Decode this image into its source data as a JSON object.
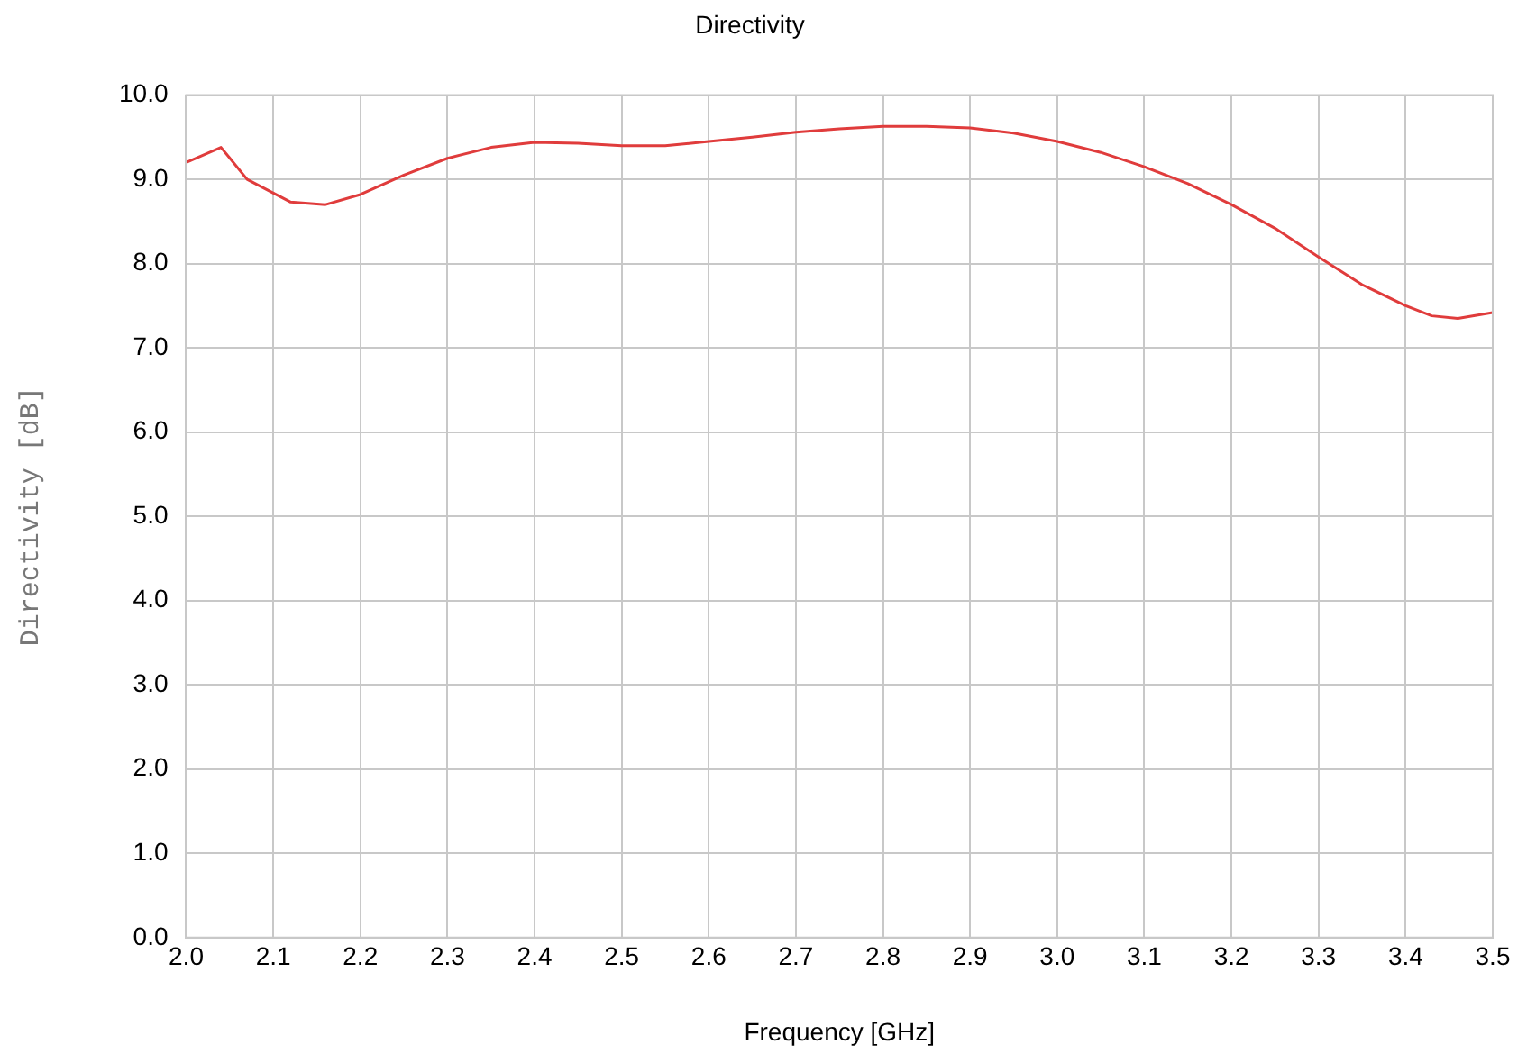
{
  "chart_data": {
    "type": "line",
    "title": "Directivity",
    "xlabel": "Frequency [GHz]",
    "ylabel": "Directivity [dB]",
    "x": [
      2.0,
      2.04,
      2.07,
      2.12,
      2.16,
      2.2,
      2.25,
      2.3,
      2.35,
      2.4,
      2.45,
      2.5,
      2.55,
      2.6,
      2.65,
      2.7,
      2.75,
      2.8,
      2.85,
      2.9,
      2.95,
      3.0,
      3.05,
      3.1,
      3.15,
      3.2,
      3.25,
      3.3,
      3.35,
      3.4,
      3.43,
      3.46,
      3.5
    ],
    "series": [
      {
        "color": "#e03c3c",
        "values": [
          9.2,
          9.38,
          9.0,
          8.73,
          8.7,
          8.82,
          9.05,
          9.25,
          9.38,
          9.44,
          9.43,
          9.4,
          9.4,
          9.45,
          9.5,
          9.56,
          9.6,
          9.63,
          9.63,
          9.61,
          9.55,
          9.45,
          9.32,
          9.15,
          8.95,
          8.7,
          8.42,
          8.08,
          7.75,
          7.5,
          7.38,
          7.35,
          7.42
        ]
      }
    ],
    "xlim": [
      2.0,
      3.5
    ],
    "xticks": [
      {
        "value": 2.0,
        "label": "2.0"
      },
      {
        "value": 2.1,
        "label": "2.1"
      },
      {
        "value": 2.2,
        "label": "2.2"
      },
      {
        "value": 2.3,
        "label": "2.3"
      },
      {
        "value": 2.4,
        "label": "2.4"
      },
      {
        "value": 2.5,
        "label": "2.5"
      },
      {
        "value": 2.6,
        "label": "2.6"
      },
      {
        "value": 2.7,
        "label": "2.7"
      },
      {
        "value": 2.8,
        "label": "2.8"
      },
      {
        "value": 2.9,
        "label": "2.9"
      },
      {
        "value": 3.0,
        "label": "3.0"
      },
      {
        "value": 3.1,
        "label": "3.1"
      },
      {
        "value": 3.2,
        "label": "3.2"
      },
      {
        "value": 3.3,
        "label": "3.3"
      },
      {
        "value": 3.4,
        "label": "3.4"
      },
      {
        "value": 3.5,
        "label": "3.5"
      }
    ],
    "ylim": [
      0,
      10
    ],
    "yticks": [
      {
        "value": 0,
        "label": "0.0"
      },
      {
        "value": 1,
        "label": "1.0"
      },
      {
        "value": 2,
        "label": "2.0"
      },
      {
        "value": 3,
        "label": "3.0"
      },
      {
        "value": 4,
        "label": "4.0"
      },
      {
        "value": 5,
        "label": "5.0"
      },
      {
        "value": 6,
        "label": "6.0"
      },
      {
        "value": 7,
        "label": "7.0"
      },
      {
        "value": 8,
        "label": "8.0"
      },
      {
        "value": 9,
        "label": "9.0"
      },
      {
        "value": 10,
        "label": "10.0"
      }
    ],
    "grid": true,
    "legend": false,
    "marker": "none",
    "line_style": "solid"
  }
}
